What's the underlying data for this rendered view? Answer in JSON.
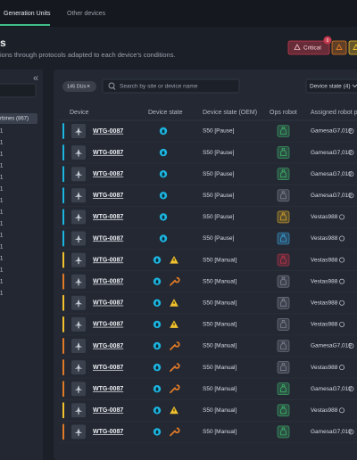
{
  "tabs": [
    "Generation Units",
    "Other devices"
  ],
  "header": {
    "title": "s",
    "subtitle": "ions through protocols adapted to each device's conditions.",
    "alerts": [
      {
        "label": "Critical",
        "count": "0",
        "color": "#c73a4e"
      },
      {
        "color": "#e07a26"
      },
      {
        "color": "#f2c12e"
      }
    ]
  },
  "sidebar": {
    "collapse": "«",
    "selected": "rbines (867)",
    "items": [
      "1",
      "1",
      "1",
      "1",
      "1",
      "1",
      "1",
      "1",
      "1",
      "1",
      "1",
      "1",
      "1",
      "1",
      "1"
    ]
  },
  "toolbar": {
    "chip": "145 DUs",
    "chip_close": "×",
    "search_placeholder": "Search by site or device name",
    "filter": "Device state (4)"
  },
  "table": {
    "columns": [
      "Device",
      "Device state",
      "Device state (OEM)",
      "Ops robot",
      "Assigned robot p"
    ],
    "triangle_color": "#f2c12e",
    "drop_color": "#1cb5e0",
    "rows": [
      {
        "device": "WTG-0087",
        "accent": "#1cb5e0",
        "alert": null,
        "oem": "S50 [Pause]",
        "robot_color": "#3fae6a",
        "assigned": "GamesaG7,019"
      },
      {
        "device": "WTG-0087",
        "accent": "#1cb5e0",
        "alert": null,
        "oem": "S50 [Pause]",
        "robot_color": "#3fae6a",
        "assigned": "GamesaG7,019"
      },
      {
        "device": "WTG-0087",
        "accent": "#1cb5e0",
        "alert": null,
        "oem": "S50 [Pause]",
        "robot_color": "#3fae6a",
        "assigned": "GamesaG7,019"
      },
      {
        "device": "WTG-0087",
        "accent": "#1cb5e0",
        "alert": null,
        "oem": "S50 [Pause]",
        "robot_color": "#7b818d",
        "assigned": "GamesaG7,019"
      },
      {
        "device": "WTG-0087",
        "accent": "#1cb5e0",
        "alert": null,
        "oem": "S50 [Pause]",
        "robot_color": "#d6a728",
        "assigned": "Vestas988"
      },
      {
        "device": "WTG-0087",
        "accent": "#1cb5e0",
        "alert": null,
        "oem": "S50 [Pause]",
        "robot_color": "#3aa0d8",
        "assigned": "Vestas988"
      },
      {
        "device": "WTG-0087",
        "accent": "#f2c12e",
        "alert": "#f2c12e",
        "oem": "S50 [Manual]",
        "robot_color": "#c0344a",
        "assigned": "Vestas988"
      },
      {
        "device": "WTG-0087",
        "accent": "#e07a26",
        "alert": "#e07a26",
        "oem": "S50 [Manual]",
        "robot_color": "#7b818d",
        "assigned": "Vestas988"
      },
      {
        "device": "WTG-0087",
        "accent": "#f2c12e",
        "alert": "#f2c12e",
        "oem": "S50 [Manual]",
        "robot_color": "#7b818d",
        "assigned": "Vestas988"
      },
      {
        "device": "WTG-0087",
        "accent": "#f2c12e",
        "alert": "#f2c12e",
        "oem": "S50 [Manual]",
        "robot_color": "#7b818d",
        "assigned": "Vestas988"
      },
      {
        "device": "WTG-0087",
        "accent": "#e07a26",
        "alert": "#e07a26",
        "oem": "S50 [Manual]",
        "robot_color": "#7b818d",
        "assigned": "GamesaG7,019"
      },
      {
        "device": "WTG-0087",
        "accent": "#e07a26",
        "alert": "#e07a26",
        "oem": "S50 [Manual]",
        "robot_color": "#7b818d",
        "assigned": "Vestas988"
      },
      {
        "device": "WTG-0087",
        "accent": "#e07a26",
        "alert": "#e07a26",
        "oem": "S50 [Manual]",
        "robot_color": "#3fae6a",
        "assigned": "GamesaG7,019"
      },
      {
        "device": "WTG-0087",
        "accent": "#f2c12e",
        "alert": "#f2c12e",
        "oem": "S50 [Manual]",
        "robot_color": "#3fae6a",
        "assigned": "Vestas988"
      },
      {
        "device": "WTG-0087",
        "accent": "#e07a26",
        "alert": "#e07a26",
        "oem": "S50 [Manual]",
        "robot_color": "#3fae6a",
        "assigned": "GamesaG7,019"
      }
    ]
  }
}
